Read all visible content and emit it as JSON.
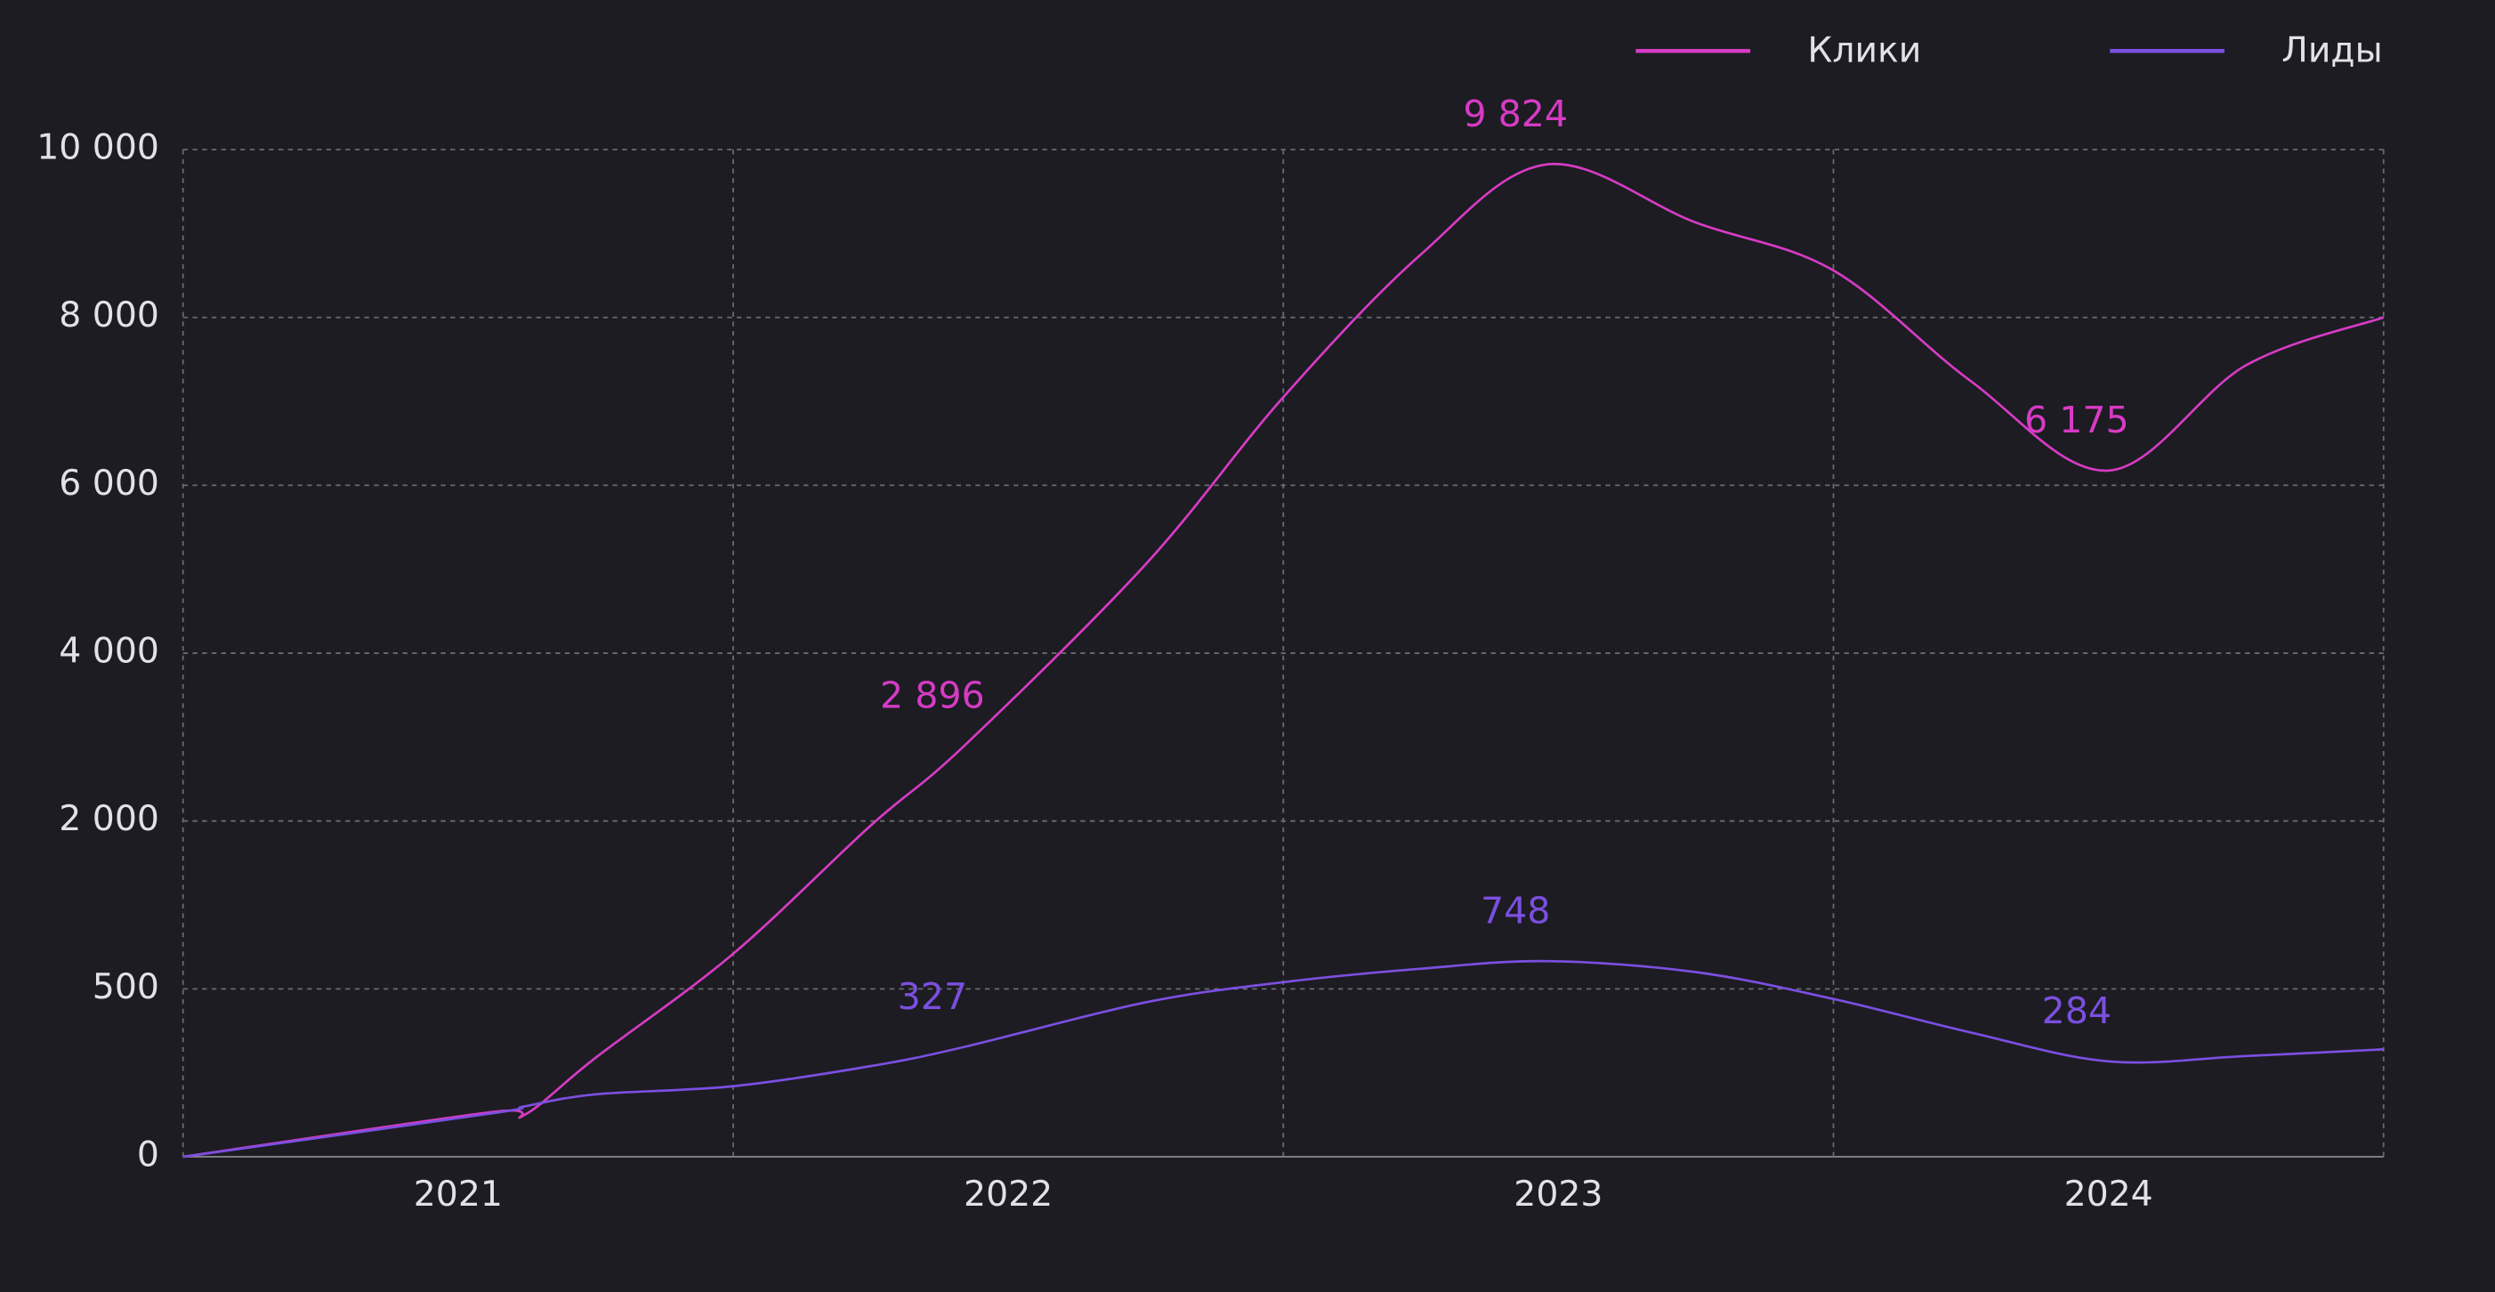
{
  "chart_data": {
    "type": "line",
    "x": [
      2020.5,
      2021.06,
      2021.12,
      2021.25,
      2021.5,
      2021.75,
      2021.92,
      2022.25,
      2022.5,
      2022.75,
      2022.98,
      2023.25,
      2023.5,
      2023.75,
      2024.0,
      2024.25,
      2024.5
    ],
    "series": [
      {
        "name": "Клики",
        "color": "#d63bc4",
        "values": [
          0,
          133,
          124,
          295,
          814,
          1960,
          2896,
          5060,
          7050,
          8750,
          9824,
          9130,
          8560,
          7240,
          6175,
          7430,
          8000
        ],
        "value_labels": [
          null,
          null,
          null,
          null,
          null,
          null,
          "2 896",
          null,
          null,
          null,
          "9 824",
          null,
          null,
          null,
          "6 175",
          null,
          null
        ]
      },
      {
        "name": "Лиды",
        "color": "#7b4fe0",
        "values": [
          0,
          129,
          150,
          186,
          210,
          270,
          327,
          460,
          560,
          680,
          748,
          650,
          470,
          370,
          284,
          300,
          320
        ],
        "value_labels": [
          null,
          null,
          null,
          null,
          null,
          null,
          "327",
          null,
          null,
          null,
          "748",
          null,
          null,
          null,
          "284",
          null,
          null
        ]
      }
    ],
    "xlim": [
      2020.5,
      2024.5
    ],
    "xticks": [
      2021,
      2022,
      2023,
      2024
    ],
    "ylim": [
      0,
      10000
    ],
    "yticks": [
      0,
      500,
      {
        "value": 2000,
        "label": "2 000"
      },
      {
        "value": 4000,
        "label": "4 000"
      },
      {
        "value": 6000,
        "label": "6 000"
      },
      {
        "value": 8000,
        "label": "8 000"
      },
      {
        "value": 10000,
        "label": "10 000"
      }
    ],
    "grid": true,
    "legend": "top-right"
  }
}
